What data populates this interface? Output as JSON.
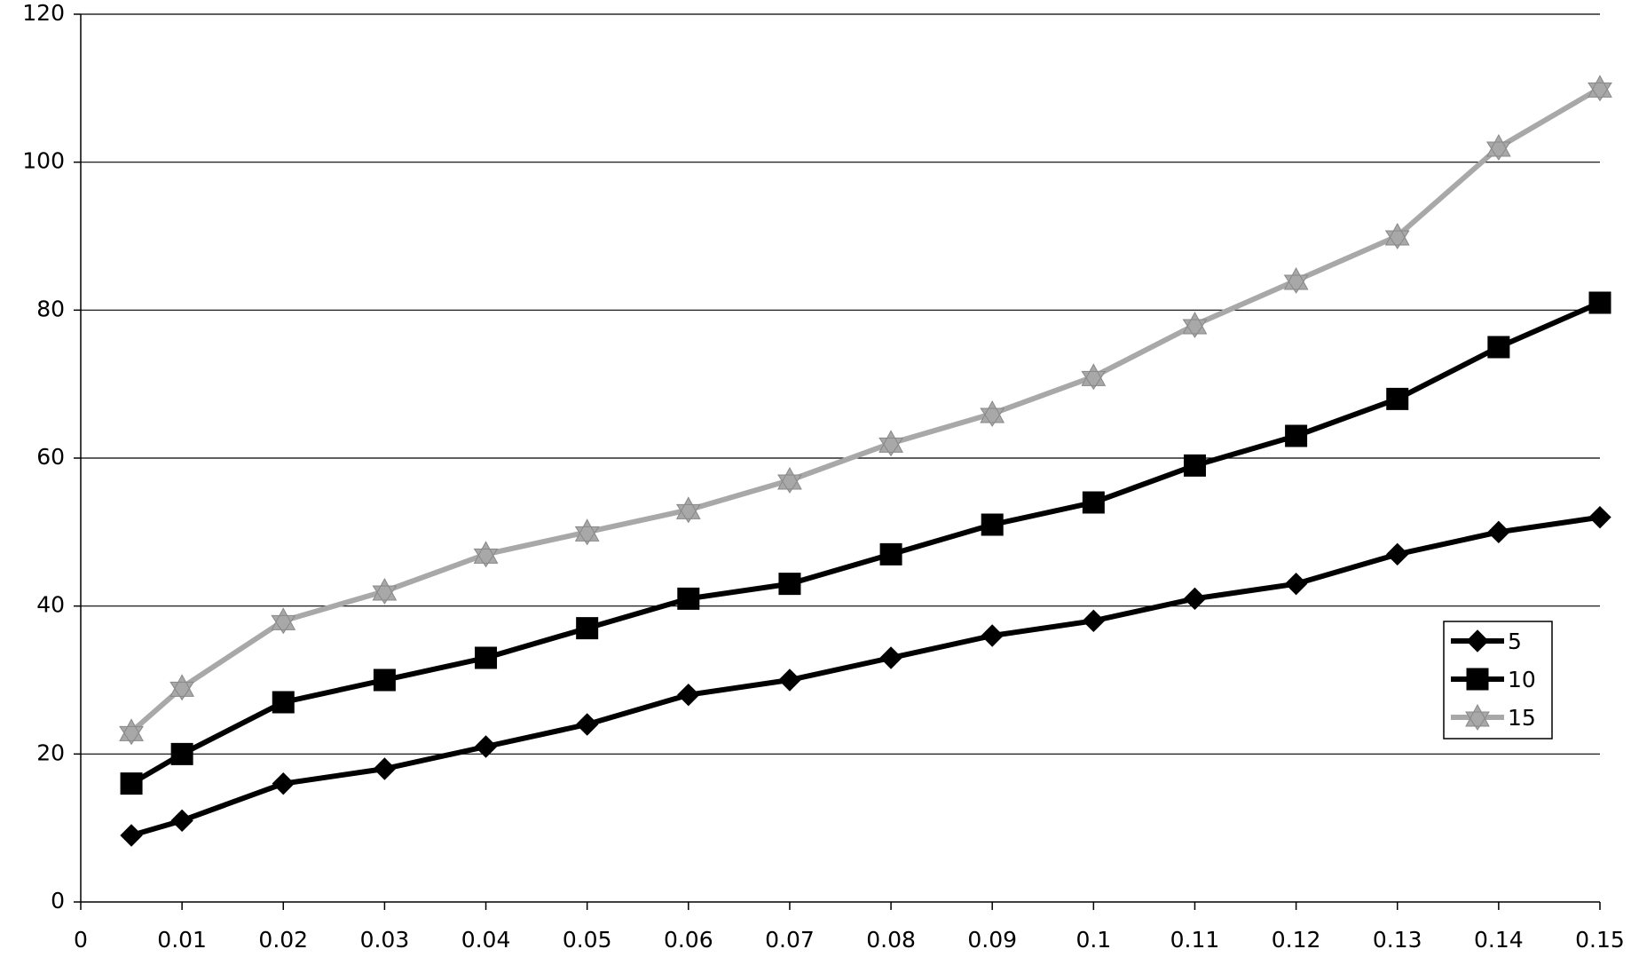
{
  "chart_data": {
    "type": "line",
    "x": [
      0.005,
      0.01,
      0.02,
      0.03,
      0.04,
      0.05,
      0.06,
      0.07,
      0.08,
      0.09,
      0.1,
      0.11,
      0.12,
      0.13,
      0.14,
      0.15
    ],
    "series": [
      {
        "name": "5",
        "color": "#000000",
        "marker": "diamond",
        "values": [
          9,
          11,
          16,
          18,
          21,
          24,
          28,
          30,
          33,
          36,
          38,
          41,
          43,
          47,
          50,
          52
        ]
      },
      {
        "name": "10",
        "color": "#000000",
        "marker": "square",
        "values": [
          16,
          20,
          27,
          30,
          33,
          37,
          41,
          43,
          47,
          51,
          54,
          59,
          63,
          68,
          75,
          81
        ]
      },
      {
        "name": "15",
        "color": "#a8a8a8",
        "marker": "star",
        "values": [
          23,
          29,
          38,
          42,
          47,
          50,
          53,
          57,
          62,
          66,
          71,
          78,
          84,
          90,
          102,
          110
        ]
      }
    ],
    "xlim": [
      0,
      0.15
    ],
    "xticks": [
      0,
      0.01,
      0.02,
      0.03,
      0.04,
      0.05,
      0.06,
      0.07,
      0.08,
      0.09,
      0.1,
      0.11,
      0.12,
      0.13,
      0.14,
      0.15
    ],
    "ylim": [
      0,
      120
    ],
    "yticks": [
      0,
      20,
      40,
      60,
      80,
      100,
      120
    ],
    "grid": true,
    "legend": "right"
  }
}
